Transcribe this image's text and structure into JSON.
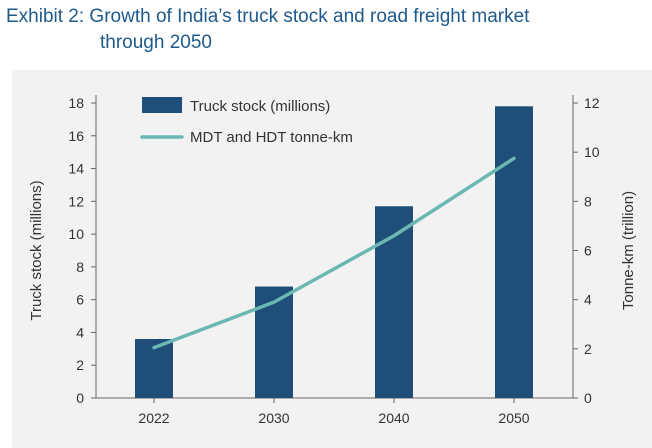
{
  "title": {
    "line1": "Exhibit 2: Growth of India’s truck stock and road freight market",
    "line2": "through 2050"
  },
  "colors": {
    "title": "#1f5a8c",
    "bar": "#1f4e79",
    "line": "#6bb8b2",
    "panel": "#f2f2f2",
    "axis": "#666666"
  },
  "chart_data": {
    "type": "bar",
    "categories": [
      "2022",
      "2030",
      "2040",
      "2050"
    ],
    "series": [
      {
        "name": "Truck stock (millions)",
        "type": "bar",
        "axis": "left",
        "values": [
          3.6,
          6.8,
          11.7,
          17.8
        ]
      },
      {
        "name": "MDT and HDT tonne-km",
        "type": "line",
        "axis": "right",
        "values": [
          2.05,
          3.9,
          6.6,
          9.75
        ]
      }
    ],
    "ylabel": "Truck stock (millions)",
    "y2label": "Tonne-km (trillion)",
    "ylim": [
      0,
      18
    ],
    "y2lim": [
      0,
      12
    ],
    "yticks": [
      "0",
      "2",
      "4",
      "6",
      "8",
      "10",
      "12",
      "14",
      "16",
      "18"
    ],
    "y2ticks": [
      "0",
      "2",
      "4",
      "6",
      "8",
      "10",
      "12"
    ],
    "legend": [
      "Truck stock (millions)",
      "MDT and HDT tonne-km"
    ],
    "legend_position": "top-left",
    "grid": false
  }
}
